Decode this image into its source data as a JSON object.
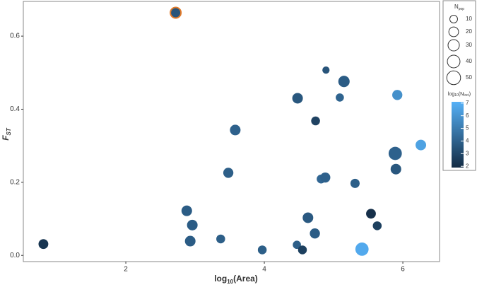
{
  "chart_data": {
    "type": "bubble",
    "xlabel": {
      "main": "log",
      "sub": "10",
      "rest": "(Area)"
    },
    "ylabel": {
      "main": "F",
      "sub": "ST"
    },
    "x": [
      0.81,
      2.72,
      2.88,
      2.96,
      2.93,
      3.37,
      3.48,
      3.58,
      3.97,
      4.48,
      4.47,
      4.55,
      4.63,
      4.73,
      4.74,
      4.82,
      4.88,
      4.89,
      5.09,
      5.15,
      5.31,
      5.41,
      5.54,
      5.63,
      5.89,
      5.9,
      5.92,
      6.26
    ],
    "values": [
      0.031,
      0.664,
      0.122,
      0.083,
      0.039,
      0.045,
      0.226,
      0.343,
      0.015,
      0.43,
      0.029,
      0.015,
      0.103,
      0.06,
      0.368,
      0.209,
      0.213,
      0.507,
      0.432,
      0.476,
      0.197,
      0.017,
      0.114,
      0.081,
      0.279,
      0.236,
      0.439,
      0.302
    ],
    "sizes": [
      20,
      25,
      25,
      25,
      25,
      15,
      22,
      25,
      15,
      25,
      12,
      15,
      25,
      22,
      15,
      15,
      22,
      8,
      12,
      30,
      17,
      45,
      20,
      15,
      45,
      25,
      22,
      25
    ],
    "color_values": [
      2.3,
      3.5,
      3.8,
      3.8,
      3.8,
      3.9,
      3.9,
      4.0,
      3.9,
      3.6,
      3.9,
      2.7,
      3.7,
      3.8,
      2.8,
      4.2,
      4.0,
      3.5,
      4.1,
      3.8,
      3.9,
      6.8,
      2.1,
      2.7,
      4.0,
      3.6,
      5.8,
      6.5
    ],
    "edgecolors": [
      null,
      "#e07a2a",
      null,
      null,
      null,
      null,
      null,
      null,
      null,
      null,
      null,
      null,
      null,
      null,
      null,
      null,
      null,
      null,
      null,
      null,
      null,
      null,
      null,
      null,
      null,
      null,
      null,
      null
    ],
    "xlim": [
      0.52,
      6.53
    ],
    "xticks": [
      2,
      4,
      6
    ],
    "ylim": [
      -0.017,
      0.695
    ],
    "yticks": [
      {
        "value": 0,
        "label": "0.0"
      },
      {
        "value": 0.2,
        "label": "0.2"
      },
      {
        "value": 0.4,
        "label": "0.4"
      },
      {
        "value": 0.6,
        "label": "0.6"
      }
    ],
    "size_legend": {
      "title": {
        "main": "N",
        "sub": "pop"
      },
      "values": [
        10,
        20,
        30,
        40,
        50
      ]
    },
    "color_legend": {
      "title": {
        "main": "log",
        "sub": "10",
        "rest": "(N",
        "sub2": "loci",
        "end": ")"
      },
      "ticks": [
        2,
        3,
        4,
        5,
        6,
        7
      ]
    },
    "clim": [
      1.9,
      7.1
    ],
    "cmap": [
      "#132B43",
      "#56B1F7"
    ],
    "grid": false
  }
}
